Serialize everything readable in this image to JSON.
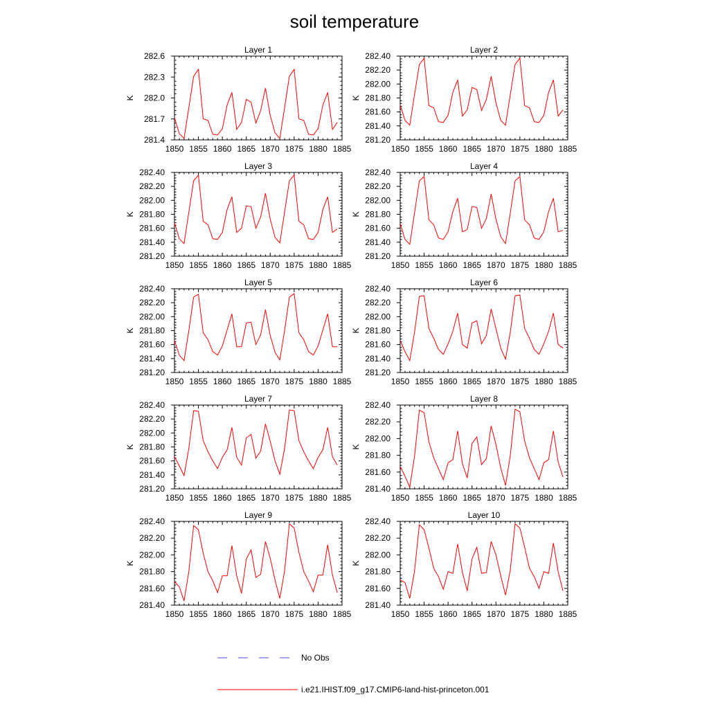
{
  "figure": {
    "title": "soil temperature"
  },
  "legend": {
    "obs_label": "No Obs",
    "obs_color": "#4a4ae0",
    "model_label": "i.e21.IHIST.f09_g17.CMIP6-land-hist-princeton.001",
    "model_color": "#ff0000"
  },
  "chart_data": [
    {
      "type": "line",
      "title": "Layer 1",
      "ylabel": "K",
      "xlim": [
        1850,
        1885
      ],
      "xticks": [
        1850,
        1855,
        1860,
        1865,
        1870,
        1875,
        1880,
        1885
      ],
      "ylim": [
        281.4,
        282.6
      ],
      "yticks": [
        "281.4",
        "281.7",
        "282.0",
        "282.3",
        "282.6"
      ],
      "x_start": 1850,
      "series": [
        {
          "color": "#ff0000",
          "values": [
            281.72,
            281.49,
            281.42,
            281.86,
            282.31,
            282.41,
            281.7,
            281.68,
            281.48,
            281.47,
            281.56,
            281.9,
            282.08,
            281.55,
            281.65,
            281.98,
            281.94,
            281.64,
            281.82,
            282.14,
            281.75,
            281.5,
            281.42,
            281.86,
            282.31,
            282.41,
            281.7,
            281.68,
            281.48,
            281.47,
            281.56,
            281.9,
            282.08,
            281.55,
            281.65
          ]
        }
      ]
    },
    {
      "type": "line",
      "title": "Layer 2",
      "ylabel": "K",
      "xlim": [
        1850,
        1885
      ],
      "xticks": [
        1850,
        1855,
        1860,
        1865,
        1870,
        1875,
        1880,
        1885
      ],
      "ylim": [
        281.2,
        282.4
      ],
      "yticks": [
        "281.20",
        "281.40",
        "281.60",
        "281.80",
        "282.00",
        "282.20",
        "282.40"
      ],
      "x_start": 1850,
      "series": [
        {
          "color": "#ff0000",
          "values": [
            281.7,
            281.48,
            281.41,
            281.85,
            282.28,
            282.37,
            281.69,
            281.66,
            281.46,
            281.45,
            281.55,
            281.88,
            282.06,
            281.54,
            281.63,
            281.95,
            281.92,
            281.62,
            281.78,
            282.11,
            281.73,
            281.48,
            281.41,
            281.85,
            282.28,
            282.37,
            281.69,
            281.66,
            281.46,
            281.45,
            281.55,
            281.88,
            282.06,
            281.54,
            281.63
          ]
        }
      ]
    },
    {
      "type": "line",
      "title": "Layer 3",
      "ylabel": "K",
      "xlim": [
        1850,
        1885
      ],
      "xticks": [
        1850,
        1855,
        1860,
        1865,
        1870,
        1875,
        1880,
        1885
      ],
      "ylim": [
        281.2,
        282.4
      ],
      "yticks": [
        "281.20",
        "281.40",
        "281.60",
        "281.80",
        "282.00",
        "282.20",
        "282.40"
      ],
      "x_start": 1850,
      "series": [
        {
          "color": "#ff0000",
          "values": [
            281.68,
            281.45,
            281.38,
            281.83,
            282.28,
            282.36,
            281.7,
            281.65,
            281.45,
            281.44,
            281.54,
            281.87,
            282.05,
            281.54,
            281.6,
            281.92,
            281.91,
            281.6,
            281.76,
            282.1,
            281.73,
            281.47,
            281.39,
            281.83,
            282.28,
            282.36,
            281.7,
            281.65,
            281.45,
            281.44,
            281.54,
            281.87,
            282.05,
            281.54,
            281.59
          ]
        }
      ]
    },
    {
      "type": "line",
      "title": "Layer 4",
      "ylabel": "K",
      "xlim": [
        1850,
        1885
      ],
      "xticks": [
        1850,
        1855,
        1860,
        1865,
        1870,
        1875,
        1880,
        1885
      ],
      "ylim": [
        281.2,
        282.4
      ],
      "yticks": [
        "281.20",
        "281.40",
        "281.60",
        "281.80",
        "282.00",
        "282.20",
        "282.40"
      ],
      "x_start": 1850,
      "series": [
        {
          "color": "#ff0000",
          "values": [
            281.67,
            281.44,
            281.37,
            281.82,
            282.28,
            282.34,
            281.72,
            281.65,
            281.46,
            281.44,
            281.55,
            281.84,
            282.03,
            281.55,
            281.58,
            281.91,
            281.9,
            281.6,
            281.74,
            282.09,
            281.73,
            281.48,
            281.38,
            281.82,
            282.28,
            282.34,
            281.72,
            281.65,
            281.46,
            281.44,
            281.55,
            281.84,
            282.03,
            281.55,
            281.57
          ]
        }
      ]
    },
    {
      "type": "line",
      "title": "Layer 5",
      "ylabel": "K",
      "xlim": [
        1850,
        1885
      ],
      "xticks": [
        1850,
        1855,
        1860,
        1865,
        1870,
        1875,
        1880,
        1885
      ],
      "ylim": [
        281.2,
        282.4
      ],
      "yticks": [
        "281.20",
        "281.40",
        "281.60",
        "281.80",
        "282.00",
        "282.20",
        "282.40"
      ],
      "x_start": 1850,
      "series": [
        {
          "color": "#ff0000",
          "values": [
            281.66,
            281.45,
            281.37,
            281.8,
            282.28,
            282.32,
            281.77,
            281.67,
            281.5,
            281.45,
            281.58,
            281.81,
            282.04,
            281.57,
            281.57,
            281.91,
            281.92,
            281.6,
            281.74,
            282.1,
            281.73,
            281.49,
            281.38,
            281.8,
            282.28,
            282.33,
            281.77,
            281.67,
            281.5,
            281.45,
            281.58,
            281.81,
            282.04,
            281.57,
            281.57
          ]
        }
      ]
    },
    {
      "type": "line",
      "title": "Layer 6",
      "ylabel": "K",
      "xlim": [
        1850,
        1885
      ],
      "xticks": [
        1850,
        1855,
        1860,
        1865,
        1870,
        1875,
        1880,
        1885
      ],
      "ylim": [
        281.2,
        282.4
      ],
      "yticks": [
        "281.20",
        "281.40",
        "281.60",
        "281.80",
        "282.00",
        "282.20",
        "282.40"
      ],
      "x_start": 1850,
      "series": [
        {
          "color": "#ff0000",
          "values": [
            281.66,
            281.5,
            281.37,
            281.78,
            282.29,
            282.3,
            281.83,
            281.69,
            281.53,
            281.46,
            281.61,
            281.79,
            282.05,
            281.6,
            281.55,
            281.91,
            281.94,
            281.61,
            281.73,
            282.11,
            281.83,
            281.55,
            281.39,
            281.78,
            282.3,
            282.31,
            281.83,
            281.69,
            281.53,
            281.46,
            281.61,
            281.79,
            282.05,
            281.6,
            281.55
          ]
        }
      ]
    },
    {
      "type": "line",
      "title": "Layer 7",
      "ylabel": "K",
      "xlim": [
        1850,
        1885
      ],
      "xticks": [
        1850,
        1855,
        1860,
        1865,
        1870,
        1875,
        1880,
        1885
      ],
      "ylim": [
        281.2,
        282.4
      ],
      "yticks": [
        "281.20",
        "281.40",
        "281.60",
        "281.80",
        "282.00",
        "282.20",
        "282.40"
      ],
      "x_start": 1850,
      "series": [
        {
          "color": "#ff0000",
          "values": [
            281.66,
            281.53,
            281.39,
            281.78,
            282.32,
            282.31,
            281.89,
            281.73,
            281.6,
            281.49,
            281.65,
            281.76,
            282.08,
            281.65,
            281.54,
            281.93,
            281.98,
            281.64,
            281.74,
            282.13,
            281.88,
            281.6,
            281.41,
            281.78,
            282.33,
            282.32,
            281.89,
            281.73,
            281.6,
            281.49,
            281.65,
            281.76,
            282.08,
            281.66,
            281.54
          ]
        }
      ]
    },
    {
      "type": "line",
      "title": "Layer 8",
      "ylabel": "K",
      "xlim": [
        1850,
        1885
      ],
      "xticks": [
        1850,
        1855,
        1860,
        1865,
        1870,
        1875,
        1880,
        1885
      ],
      "ylim": [
        281.4,
        282.4
      ],
      "yticks": [
        "281.40",
        "281.60",
        "281.80",
        "282.00",
        "282.20",
        "282.40"
      ],
      "x_start": 1850,
      "series": [
        {
          "color": "#ff0000",
          "values": [
            281.67,
            281.55,
            281.42,
            281.79,
            282.34,
            282.31,
            281.96,
            281.77,
            281.64,
            281.51,
            281.71,
            281.75,
            282.09,
            281.7,
            281.53,
            281.94,
            282.02,
            281.69,
            281.76,
            282.15,
            281.93,
            281.65,
            281.44,
            281.8,
            282.35,
            282.32,
            281.97,
            281.77,
            281.64,
            281.51,
            281.71,
            281.75,
            282.09,
            281.72,
            281.54
          ]
        }
      ]
    },
    {
      "type": "line",
      "title": "Layer 9",
      "ylabel": "K",
      "xlim": [
        1850,
        1885
      ],
      "xticks": [
        1850,
        1855,
        1860,
        1865,
        1870,
        1875,
        1880,
        1885
      ],
      "ylim": [
        281.4,
        282.4
      ],
      "yticks": [
        "281.40",
        "281.60",
        "281.80",
        "282.00",
        "282.20",
        "282.40"
      ],
      "x_start": 1850,
      "series": [
        {
          "color": "#ff0000",
          "values": [
            281.68,
            281.62,
            281.45,
            281.8,
            282.35,
            282.3,
            282.02,
            281.8,
            281.69,
            281.55,
            281.75,
            281.75,
            282.11,
            281.75,
            281.54,
            281.95,
            282.06,
            281.73,
            281.77,
            282.16,
            281.96,
            281.7,
            281.48,
            281.81,
            282.37,
            282.32,
            282.03,
            281.8,
            281.69,
            281.56,
            281.76,
            281.76,
            282.12,
            281.76,
            281.55
          ]
        }
      ]
    },
    {
      "type": "line",
      "title": "Layer 10",
      "ylabel": "K",
      "xlim": [
        1850,
        1885
      ],
      "xticks": [
        1850,
        1855,
        1860,
        1865,
        1870,
        1875,
        1880,
        1885
      ],
      "ylim": [
        281.4,
        282.4
      ],
      "yticks": [
        "281.40",
        "281.60",
        "281.80",
        "282.00",
        "282.20",
        "282.40"
      ],
      "x_start": 1850,
      "series": [
        {
          "color": "#ff0000",
          "values": [
            281.7,
            281.67,
            281.48,
            281.81,
            282.36,
            282.3,
            282.08,
            281.84,
            281.74,
            281.59,
            281.8,
            281.78,
            282.13,
            281.79,
            281.57,
            281.95,
            282.09,
            281.78,
            281.79,
            282.16,
            282.0,
            281.75,
            281.52,
            281.82,
            282.37,
            282.32,
            282.09,
            281.84,
            281.74,
            281.6,
            281.8,
            281.78,
            282.14,
            281.8,
            281.57
          ]
        }
      ]
    }
  ]
}
